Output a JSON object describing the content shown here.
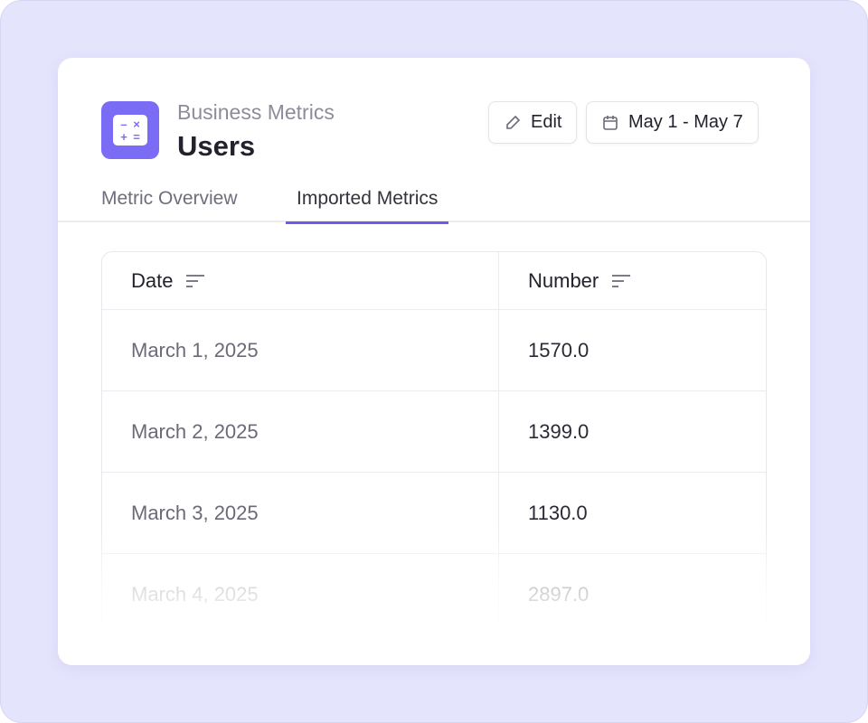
{
  "header": {
    "subtitle": "Business Metrics",
    "title": "Users",
    "edit_label": "Edit",
    "date_range": "May 1 - May 7",
    "icon": "calculator-icon"
  },
  "tabs": [
    {
      "label": "Metric Overview",
      "active": false
    },
    {
      "label": "Imported Metrics",
      "active": true
    }
  ],
  "table": {
    "columns": [
      "Date",
      "Number"
    ],
    "rows": [
      [
        "March 1, 2025",
        "1570.0"
      ],
      [
        "March 2, 2025",
        "1399.0"
      ],
      [
        "March 3, 2025",
        "1130.0"
      ],
      [
        "March 4, 2025",
        "2897.0"
      ]
    ]
  },
  "colors": {
    "accent": "#7b6cf6",
    "background": "#e4e4fd"
  }
}
